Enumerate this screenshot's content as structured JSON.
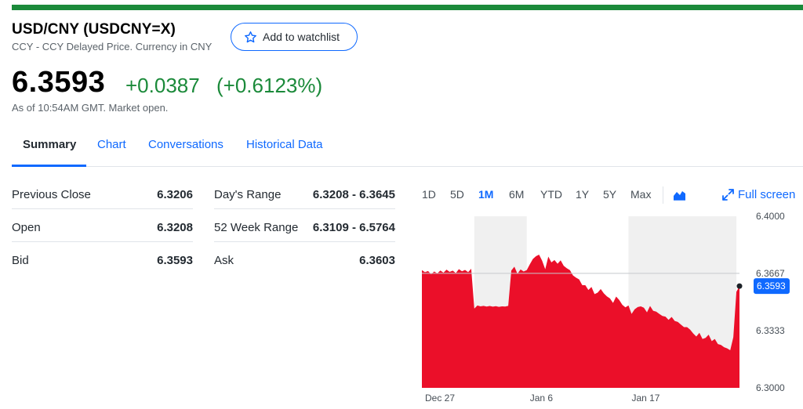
{
  "header": {
    "title": "USD/CNY (USDCNY=X)",
    "subtitle": "CCY - CCY Delayed Price. Currency in CNY",
    "watchlist_label": "Add to watchlist"
  },
  "quote": {
    "price": "6.3593",
    "change": "+0.0387",
    "change_pct": "(+0.6123%)",
    "as_of": "As of 10:54AM GMT. Market open."
  },
  "tabs": [
    {
      "label": "Summary",
      "active": true
    },
    {
      "label": "Chart",
      "active": false
    },
    {
      "label": "Conversations",
      "active": false
    },
    {
      "label": "Historical Data",
      "active": false
    }
  ],
  "stats": {
    "left": [
      {
        "label": "Previous Close",
        "value": "6.3206"
      },
      {
        "label": "Open",
        "value": "6.3208"
      },
      {
        "label": "Bid",
        "value": "6.3593"
      }
    ],
    "right": [
      {
        "label": "Day's Range",
        "value": "6.3208 - 6.3645"
      },
      {
        "label": "52 Week Range",
        "value": "6.3109 - 6.5764"
      },
      {
        "label": "Ask",
        "value": "6.3603"
      }
    ]
  },
  "chart_controls": {
    "ranges": [
      "1D",
      "5D",
      "1M",
      "6M",
      "YTD",
      "1Y",
      "5Y",
      "Max"
    ],
    "active_range": "1M",
    "chart_type_icon": "area-chart-icon",
    "fullscreen_label": "Full screen"
  },
  "colors": {
    "accent": "#0f69ff",
    "positive": "#1b8a3a",
    "chart_fill": "#eb0f29"
  },
  "chart_data": {
    "type": "area",
    "title": "",
    "xlabel": "",
    "ylabel": "",
    "ylim": [
      6.3,
      6.4
    ],
    "y_ticks": [
      "6.4000",
      "6.3667",
      "6.3333",
      "6.3000"
    ],
    "x_ticks": [
      {
        "label": "Dec 27",
        "index": 0
      },
      {
        "label": "Jan 6",
        "index": 34
      },
      {
        "label": "Jan 17",
        "index": 67
      }
    ],
    "current_label": "6.3593",
    "current_value": 6.3593,
    "reference_value": 6.3667,
    "shaded_sessions": [
      [
        17,
        34
      ],
      [
        67,
        102
      ]
    ],
    "values": [
      6.3686,
      6.3674,
      6.3681,
      6.3662,
      6.3678,
      6.3667,
      6.3684,
      6.3671,
      6.3689,
      6.3676,
      6.3683,
      6.3669,
      6.3692,
      6.3679,
      6.3687,
      6.3674,
      6.3694,
      6.3462,
      6.348,
      6.3475,
      6.3478,
      6.3474,
      6.3477,
      6.3473,
      6.3476,
      6.3472,
      6.3475,
      6.3474,
      6.3478,
      6.3684,
      6.3706,
      6.3665,
      6.369,
      6.3678,
      6.3686,
      6.372,
      6.3751,
      6.3767,
      6.3776,
      6.3741,
      6.3691,
      6.3765,
      6.3731,
      6.3745,
      6.3723,
      6.3743,
      6.3711,
      6.3697,
      6.3686,
      6.3655,
      6.3642,
      6.3632,
      6.3599,
      6.3598,
      6.357,
      6.3588,
      6.3546,
      6.3555,
      6.3576,
      6.3551,
      6.3533,
      6.3521,
      6.3495,
      6.3532,
      6.3512,
      6.3484,
      6.3469,
      6.348,
      6.3431,
      6.3458,
      6.3471,
      6.3475,
      6.3467,
      6.344,
      6.3477,
      6.3449,
      6.3444,
      6.3431,
      6.3419,
      6.3415,
      6.3396,
      6.3413,
      6.339,
      6.3384,
      6.3369,
      6.3354,
      6.3354,
      6.3339,
      6.3317,
      6.3299,
      6.3321,
      6.3285,
      6.3291,
      6.331,
      6.3272,
      6.3285,
      6.3255,
      6.325,
      6.3237,
      6.323,
      6.3219,
      6.3295,
      6.356,
      6.3593
    ]
  }
}
